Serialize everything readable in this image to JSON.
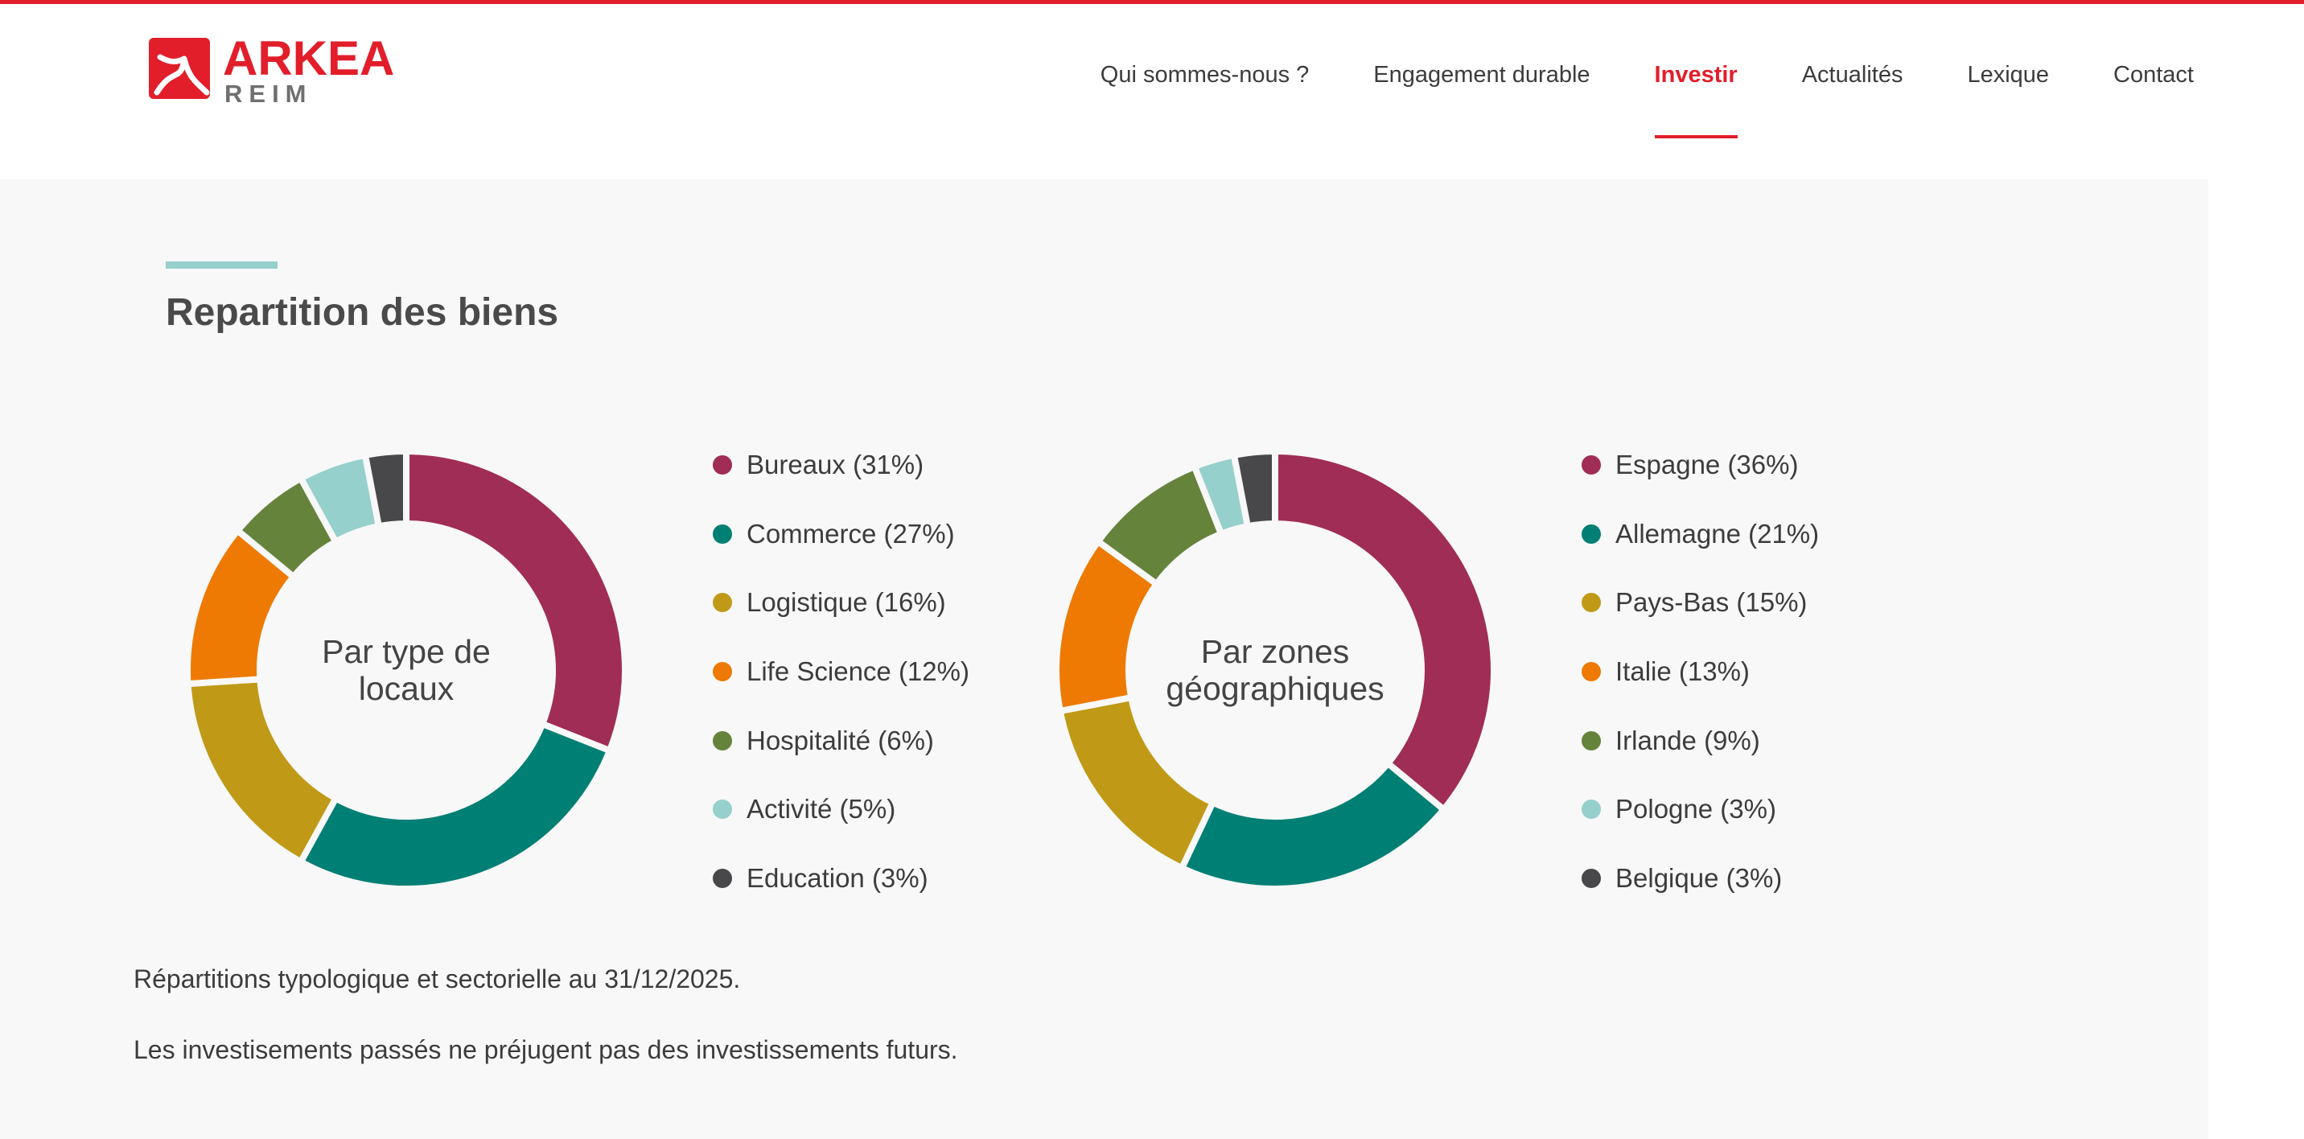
{
  "brand": {
    "name_top": "ARKEA",
    "name_bottom": "REIM",
    "red": "#e21e2b",
    "gray": "#6f6f6f"
  },
  "nav": {
    "items": [
      {
        "label": "Qui sommes-nous ?",
        "active": false
      },
      {
        "label": "Engagement durable",
        "active": false
      },
      {
        "label": "Investir",
        "active": true
      },
      {
        "label": "Actualités",
        "active": false
      },
      {
        "label": "Lexique",
        "active": false
      },
      {
        "label": "Contact",
        "active": false
      }
    ],
    "active_color": "#e21e2b"
  },
  "section": {
    "title": "Repartition des biens",
    "accent_color": "#96d0cc"
  },
  "chart_data": [
    {
      "type": "pie",
      "center_label": "Par type de locaux",
      "legend_placement": "right",
      "slices": [
        {
          "label": "Bureaux (31%)",
          "value": 31,
          "color": "#a02d56"
        },
        {
          "label": "Commerce (27%)",
          "value": 27,
          "color": "#007f74"
        },
        {
          "label": "Logistique (16%)",
          "value": 16,
          "color": "#c09a17"
        },
        {
          "label": "Life Science (12%)",
          "value": 12,
          "color": "#ee7a04"
        },
        {
          "label": "Hospitalité (6%)",
          "value": 6,
          "color": "#66833c"
        },
        {
          "label": "Activité (5%)",
          "value": 5,
          "color": "#96d0cc"
        },
        {
          "label": "Education (3%)",
          "value": 3,
          "color": "#48484b"
        }
      ]
    },
    {
      "type": "pie",
      "center_label": "Par zones géographiques",
      "legend_placement": "right",
      "slices": [
        {
          "label": "Espagne (36%)",
          "value": 36,
          "color": "#a02d56"
        },
        {
          "label": "Allemagne (21%)",
          "value": 21,
          "color": "#007f74"
        },
        {
          "label": "Pays-Bas (15%)",
          "value": 15,
          "color": "#c09a17"
        },
        {
          "label": "Italie (13%)",
          "value": 13,
          "color": "#ee7a04"
        },
        {
          "label": "Irlande (9%)",
          "value": 9,
          "color": "#66833c"
        },
        {
          "label": "Pologne (3%)",
          "value": 3,
          "color": "#96d0cc"
        },
        {
          "label": "Belgique (3%)",
          "value": 3,
          "color": "#48484b"
        }
      ]
    }
  ],
  "notes": [
    "Répartitions typologique et sectorielle au 31/12/2025.",
    "Les investisements passés ne préjugent pas des investissements futurs."
  ]
}
